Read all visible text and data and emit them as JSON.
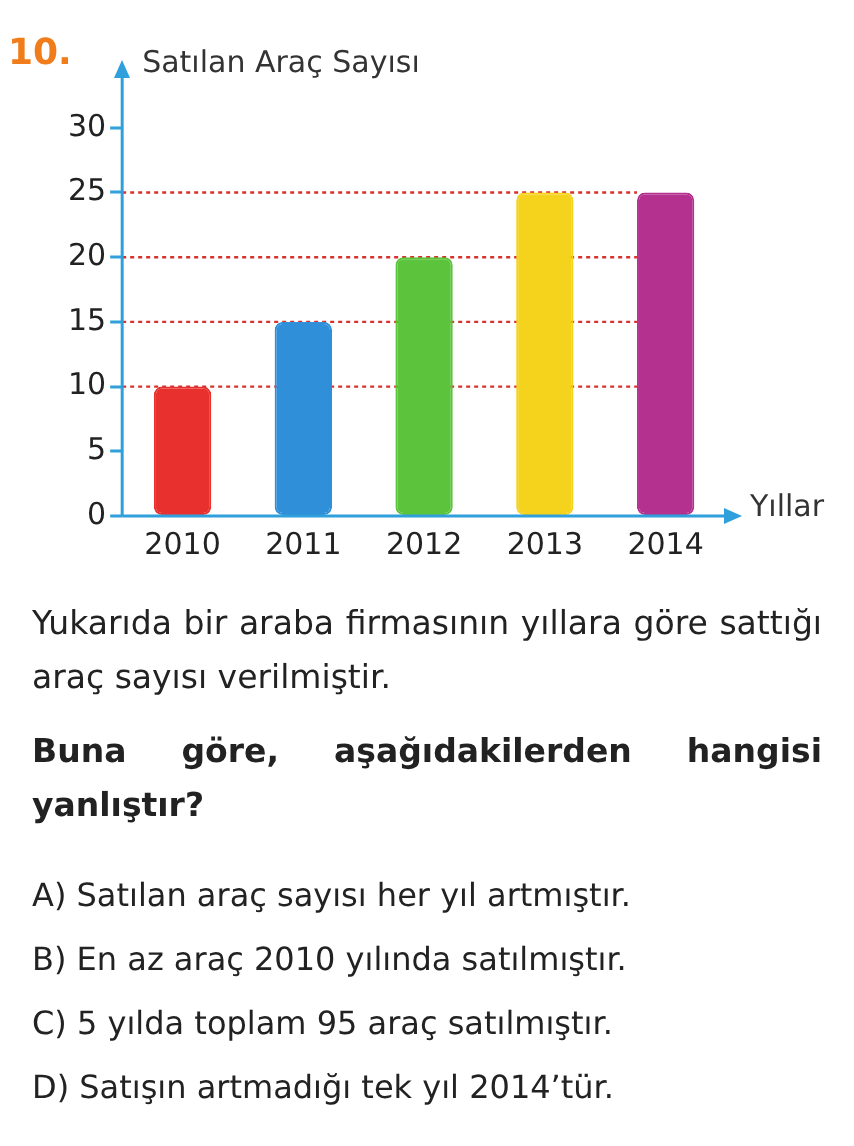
{
  "chart_data": {
    "type": "bar",
    "ylabel": "Satılan Araç Sayısı",
    "xlabel": "Yıllar",
    "categories": [
      "2010",
      "2011",
      "2012",
      "2013",
      "2014"
    ],
    "values": [
      10,
      15,
      20,
      25,
      25
    ],
    "colors": [
      "#e8312f",
      "#2f8fd8",
      "#5cc43c",
      "#f5d21c",
      "#b5318f"
    ],
    "ylim": [
      0,
      34
    ],
    "yticks": [
      0,
      5,
      10,
      15,
      20,
      25,
      30
    ],
    "grid": false,
    "legend": false,
    "ref_lines": [
      {
        "axis": "y",
        "value": 10,
        "color": "#d9302c",
        "line_style": "dotted"
      },
      {
        "axis": "y",
        "value": 15,
        "color": "#d9302c",
        "line_style": "dotted"
      },
      {
        "axis": "y",
        "value": 20,
        "color": "#d9302c",
        "line_style": "dotted"
      },
      {
        "axis": "y",
        "value": 25,
        "color": "#d9302c",
        "line_style": "dotted"
      }
    ],
    "annotations": [
      "10.",
      "Yukarıda bir araba firmasının yıllara göre sattığı araç sayısı verilmiştir.",
      "Buna göre, aşağıdakilerden hangisi yanlıştır?",
      "A) Satılan araç sayısı her yıl artmıştır.",
      "B) En az araç 2010 yılında satılmıştır.",
      "C) 5 yılda toplam 95 araç satılmıştır.",
      "D) Satışın artmadığı tek yıl 2014’tür."
    ]
  }
}
